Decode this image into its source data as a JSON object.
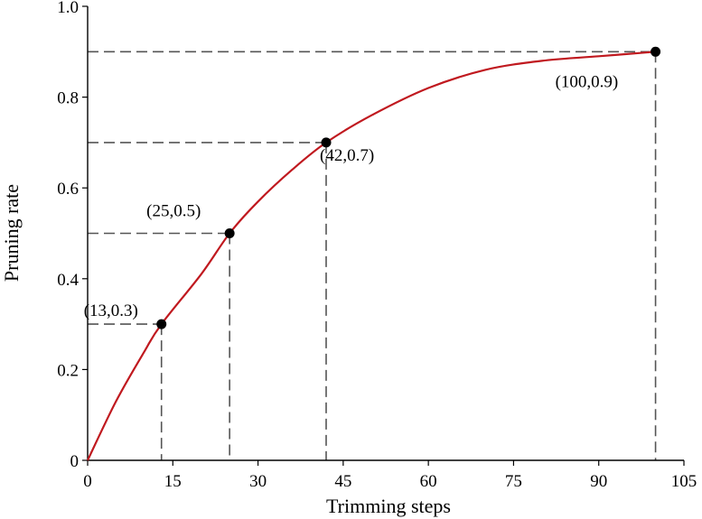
{
  "chart_data": {
    "type": "line",
    "xlabel": "Trimming steps",
    "ylabel": "Pruning rate",
    "xlim": [
      0,
      105
    ],
    "ylim": [
      0,
      1.0
    ],
    "xticks": [
      0,
      15,
      30,
      45,
      60,
      75,
      90,
      105
    ],
    "xtick_labels": [
      "0",
      "15",
      "30",
      "45",
      "60",
      "75",
      "90",
      "105"
    ],
    "yticks": [
      0,
      0.2,
      0.4,
      0.6,
      0.8,
      1.0
    ],
    "ytick_labels": [
      "0",
      "0.2",
      "0.4",
      "0.6",
      "0.8",
      "1.0"
    ],
    "grid": false,
    "series": [
      {
        "color": "#c0191f",
        "x": [
          0,
          5,
          10,
          13,
          20,
          25,
          30,
          36,
          42,
          50,
          60,
          70,
          80,
          90,
          100
        ],
        "y": [
          0,
          0.13,
          0.24,
          0.3,
          0.41,
          0.5,
          0.57,
          0.64,
          0.7,
          0.76,
          0.82,
          0.86,
          0.88,
          0.89,
          0.9
        ]
      }
    ],
    "points": [
      {
        "x": 13,
        "y": 0.3,
        "label": "(13,0.3)"
      },
      {
        "x": 25,
        "y": 0.5,
        "label": "(25,0.5)"
      },
      {
        "x": 42,
        "y": 0.7,
        "label": "(42,0.7)"
      },
      {
        "x": 100,
        "y": 0.9,
        "label": "(100,0.9)"
      }
    ]
  }
}
